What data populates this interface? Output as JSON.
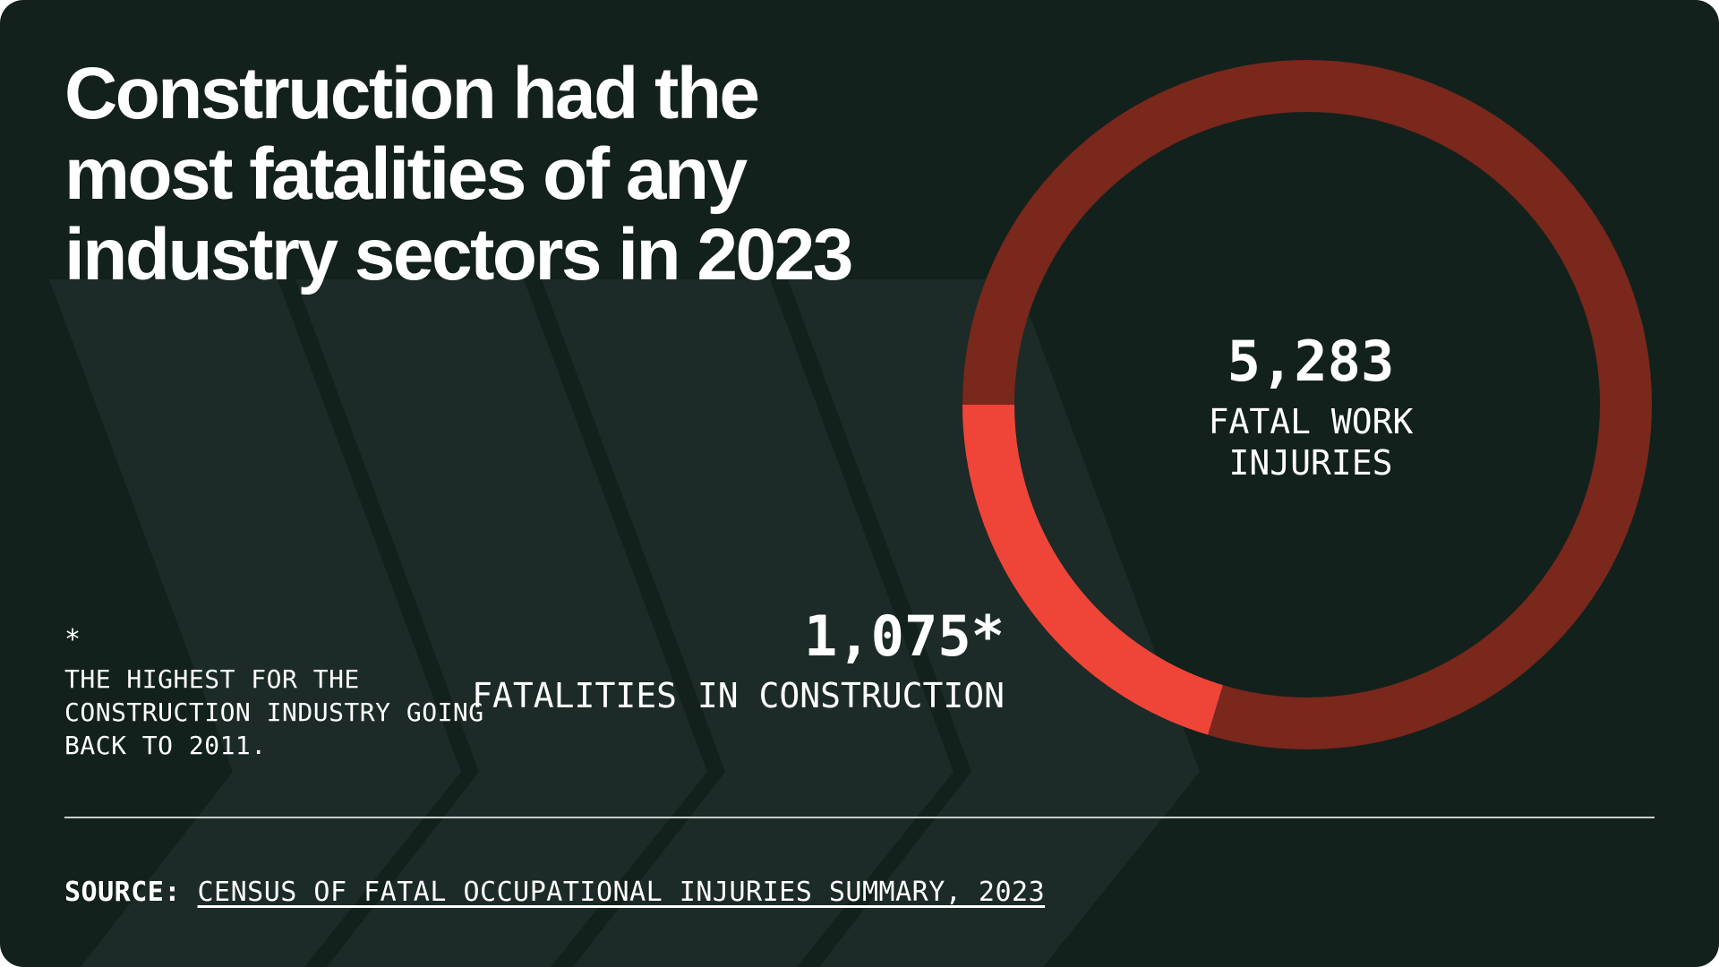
{
  "title": "Construction had the most fatalities of any industry sectors in 2023",
  "colors": {
    "background": "#13211d",
    "chevron": "#1c2b27",
    "total_ring": "#7a271c",
    "construction_segment": "#ef4539",
    "text": "#ffffff"
  },
  "chart_data": {
    "type": "pie",
    "style": "donut",
    "total": {
      "value": 5283,
      "display": "5,283",
      "label": "FATAL WORK INJURIES"
    },
    "segments": [
      {
        "value": 1075,
        "display": "1,075*",
        "label": "FATALITIES IN CONSTRUCTION",
        "color": "#ef4539"
      },
      {
        "value": 4208,
        "color": "#7a271c"
      }
    ]
  },
  "footnote": {
    "mark": "*",
    "text": "THE HIGHEST FOR THE CONSTRUCTION INDUSTRY GOING BACK TO 2011."
  },
  "source": {
    "key": "SOURCE:",
    "link_text": "CENSUS OF FATAL OCCUPATIONAL INJURIES SUMMARY, 2023"
  }
}
